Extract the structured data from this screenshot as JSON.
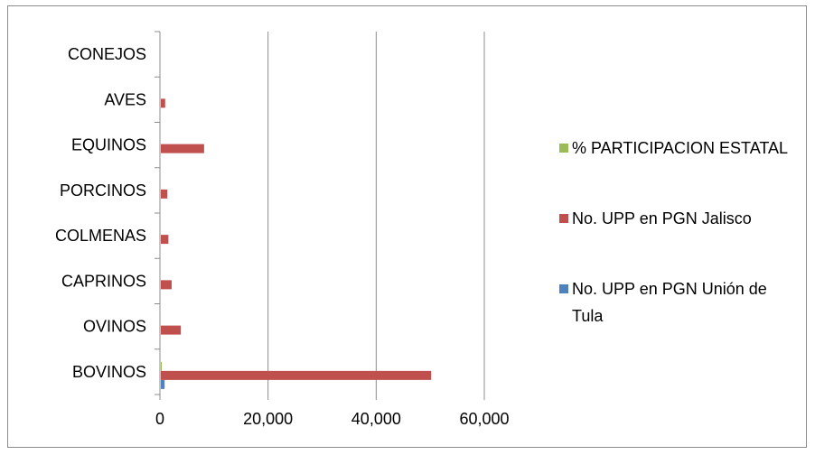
{
  "chart_data": {
    "type": "bar",
    "orientation": "horizontal",
    "categories": [
      "BOVINOS",
      "OVINOS",
      "CAPRINOS",
      "COLMENAS",
      "PORCINOS",
      "EQUINOS",
      "AVES",
      "CONEJOS"
    ],
    "series": [
      {
        "name": "No. UPP en PGN Unión de Tula",
        "color": "#4f81bd",
        "values": [
          700,
          0,
          0,
          0,
          0,
          0,
          0,
          0
        ]
      },
      {
        "name": "No. UPP en PGN Jalisco",
        "color": "#c0504d",
        "values": [
          50000,
          3700,
          2000,
          1400,
          1200,
          8000,
          800,
          0
        ]
      },
      {
        "name": "% PARTICIPACION ESTATAL",
        "color": "#9bbb59",
        "values": [
          1.4,
          0,
          0,
          0,
          0,
          0,
          0,
          0
        ]
      }
    ],
    "x_ticks": [
      "0",
      "20,000",
      "40,000",
      "60,000"
    ],
    "xlim": [
      0,
      60000
    ],
    "grid": "vertical",
    "legend_position": "right"
  }
}
